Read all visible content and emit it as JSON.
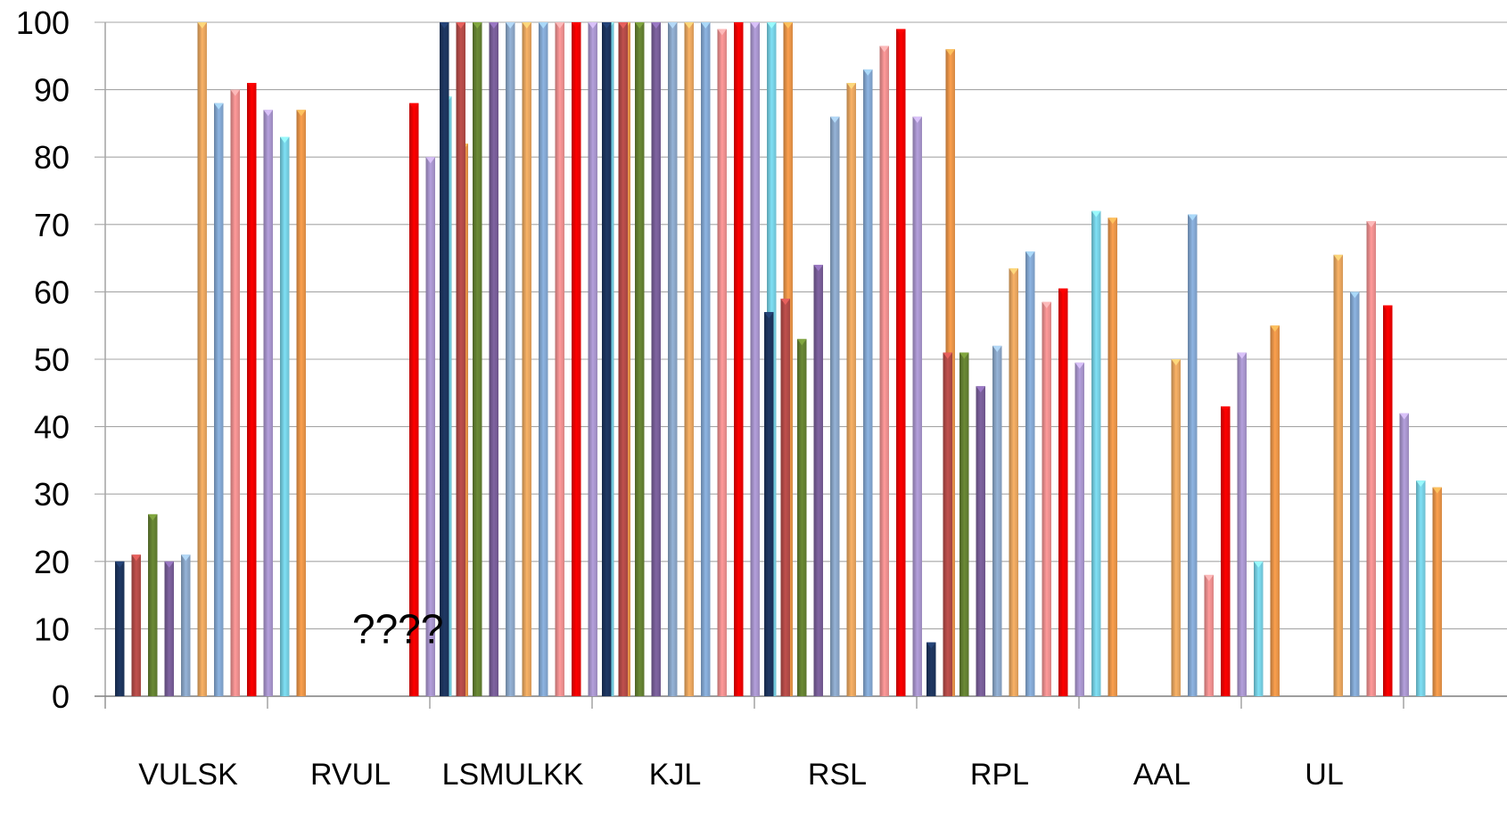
{
  "chart_data": {
    "type": "bar",
    "categories": [
      "VULSK",
      "RVUL",
      "LSMULKK",
      "KJL",
      "RSL",
      "RPL",
      "AAL",
      "UL"
    ],
    "series": [
      {
        "color": "#1f3864",
        "values": [
          20,
          null,
          100,
          100,
          57,
          8,
          null,
          null
        ]
      },
      {
        "color": "#c0504d",
        "values": [
          21,
          null,
          100,
          100,
          59,
          51,
          null,
          null
        ]
      },
      {
        "color": "#6b8a35",
        "values": [
          27,
          null,
          100,
          100,
          53,
          51,
          null,
          null
        ]
      },
      {
        "color": "#8064a2",
        "values": [
          20,
          null,
          100,
          100,
          64,
          46,
          null,
          null
        ]
      },
      {
        "color": "#95b3d7",
        "values": [
          21,
          null,
          100,
          100,
          86,
          52,
          null,
          null
        ]
      },
      {
        "color": "#f9b266",
        "values": [
          100,
          null,
          100,
          100,
          91,
          63.5,
          50,
          65.5
        ]
      },
      {
        "color": "#8db4e2",
        "values": [
          88,
          null,
          100,
          100,
          93,
          66,
          71.5,
          60
        ]
      },
      {
        "color": "#ff9a9a",
        "values": [
          90,
          null,
          100,
          99,
          96.5,
          58.5,
          18,
          70.5
        ]
      },
      {
        "color": "#ff0000",
        "values": [
          91,
          88,
          100,
          100,
          99,
          60.5,
          43,
          58
        ]
      },
      {
        "color": "#b4a0dc",
        "values": [
          87,
          80,
          100,
          100,
          86,
          49.5,
          51,
          42
        ]
      },
      {
        "color": "#7fe0f5",
        "values": [
          83,
          89,
          100,
          100,
          null,
          72,
          20,
          32
        ]
      },
      {
        "color": "#fba04e",
        "values": [
          87,
          82,
          100,
          100,
          96,
          71,
          55,
          31
        ]
      }
    ],
    "ylim": [
      0,
      100
    ],
    "yticks": [
      0,
      10,
      20,
      30,
      40,
      50,
      60,
      70,
      80,
      90,
      100
    ],
    "grid": true,
    "annotations": [
      {
        "text": "????",
        "category": "RVUL",
        "y": 10
      }
    ]
  }
}
